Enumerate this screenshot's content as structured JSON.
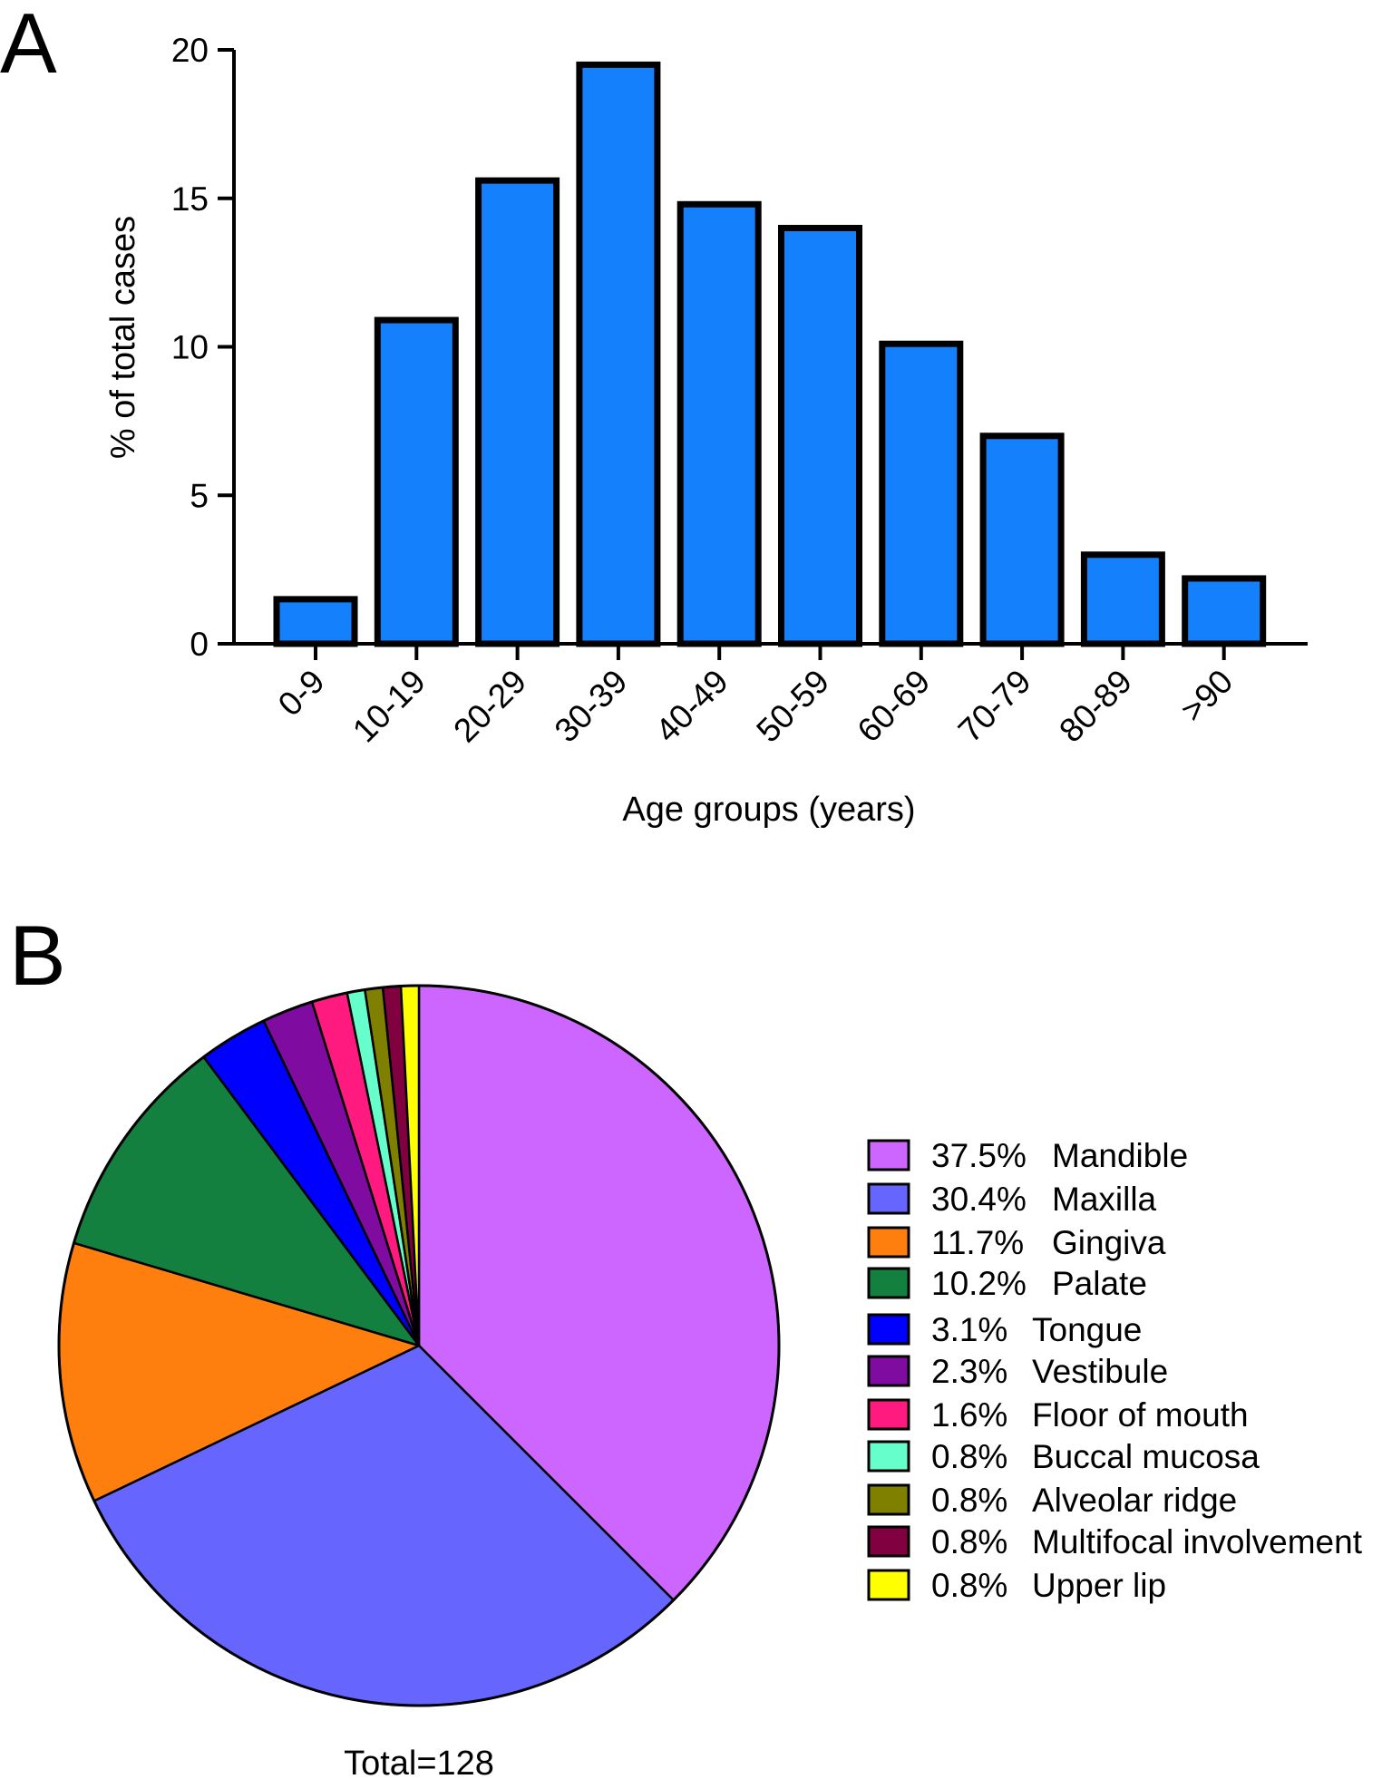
{
  "chart_data": [
    {
      "panel": "A",
      "type": "bar",
      "title": "",
      "xlabel": "Age groups (years)",
      "ylabel": "% of total cases",
      "ylim": [
        0,
        20
      ],
      "yticks": [
        0,
        5,
        10,
        15,
        20
      ],
      "categories": [
        "0-9",
        "10-19",
        "20-29",
        "30-39",
        "40-49",
        "50-59",
        "60-69",
        "70-79",
        "80-89",
        ">90"
      ],
      "values": [
        1.5,
        10.9,
        15.6,
        19.5,
        14.8,
        14.0,
        10.1,
        7.0,
        3.0,
        2.2
      ],
      "bar_color": "#1580fb",
      "edge_color": "#000000",
      "grid": false,
      "legend": false
    },
    {
      "panel": "B",
      "type": "pie",
      "title": "",
      "footer": "Total=128",
      "legend_position": "right",
      "slices": [
        {
          "pct_label": "37.5%",
          "name": "Mandible",
          "value": 37.5,
          "color": "#cc66ff"
        },
        {
          "pct_label": "30.4%",
          "name": "Maxilla",
          "value": 30.4,
          "color": "#6666ff"
        },
        {
          "pct_label": "11.7%",
          "name": "Gingiva",
          "value": 11.7,
          "color": "#ff7f0e"
        },
        {
          "pct_label": "10.2%",
          "name": "Palate",
          "value": 10.2,
          "color": "#138040"
        },
        {
          "pct_label": "3.1%",
          "name": "Tongue",
          "value": 3.1,
          "color": "#0000ff"
        },
        {
          "pct_label": "2.3%",
          "name": "Vestibule",
          "value": 2.3,
          "color": "#7f0ba0"
        },
        {
          "pct_label": "1.6%",
          "name": "Floor of mouth",
          "value": 1.6,
          "color": "#ff1a80"
        },
        {
          "pct_label": "0.8%",
          "name": "Buccal mucosa",
          "value": 0.8,
          "color": "#66ffcc"
        },
        {
          "pct_label": "0.8%",
          "name": "Alveolar ridge",
          "value": 0.8,
          "color": "#808000"
        },
        {
          "pct_label": "0.8%",
          "name": "Multifocal involvement",
          "value": 0.8,
          "color": "#800040"
        },
        {
          "pct_label": "0.8%",
          "name": "Upper lip",
          "value": 0.8,
          "color": "#ffff00"
        }
      ]
    }
  ],
  "panels": {
    "a_label": "A",
    "b_label": "B"
  }
}
